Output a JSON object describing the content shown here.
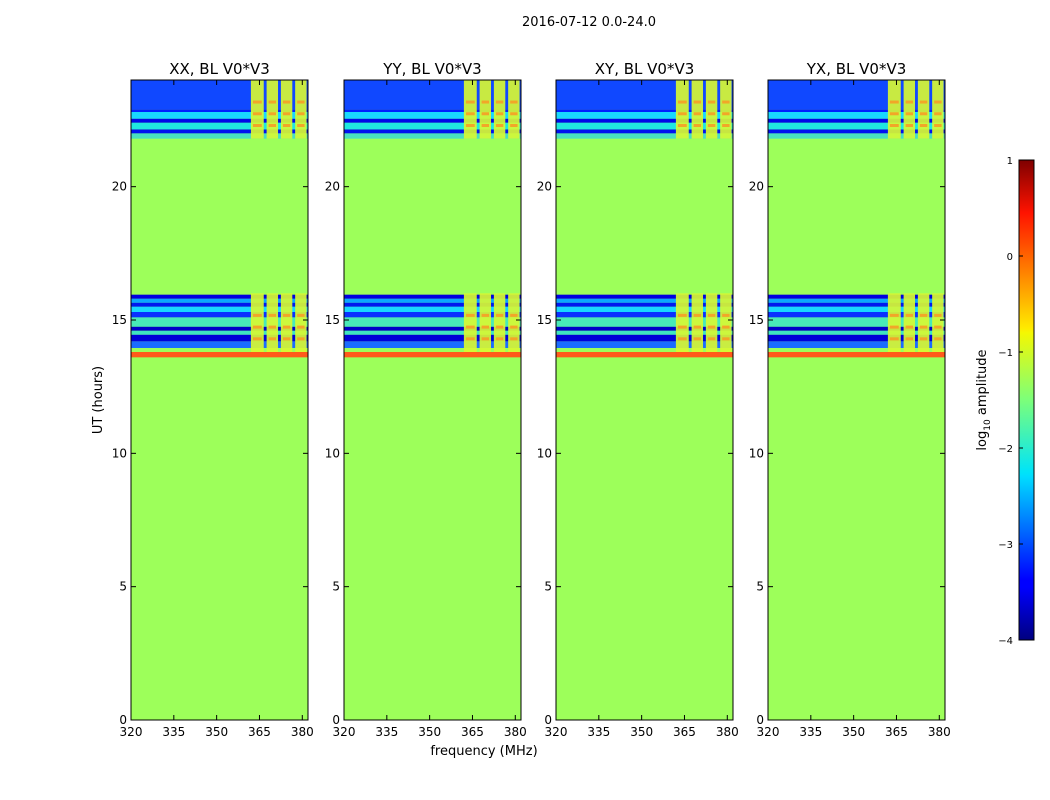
{
  "figure": {
    "suptitle": "2016-07-12 0.0-24.0",
    "xlabel": "frequency (MHz)",
    "ylabel": "UT (hours)"
  },
  "chart_data": {
    "type": "heatmap",
    "x_ticks": [
      320,
      335,
      350,
      365,
      380
    ],
    "xlim": [
      320,
      382
    ],
    "y_ticks": [
      0,
      5,
      10,
      15,
      20
    ],
    "ylim": [
      0,
      24
    ],
    "panels": [
      {
        "title": "XX, BL V0*V3"
      },
      {
        "title": "YY, BL V0*V3"
      },
      {
        "title": "XY, BL V0*V3"
      },
      {
        "title": "YX, BL V0*V3"
      }
    ],
    "fill_value": -1.3,
    "fill_color": "#9dff5a",
    "row_bands": [
      {
        "ut_range": [
          13.6,
          13.8
        ],
        "value": 0.15,
        "color": "#ff5a1a"
      },
      {
        "ut_range": [
          13.8,
          13.95
        ],
        "value": -1.3,
        "color": "#9dff5a"
      },
      {
        "ut_range": [
          13.95,
          14.2
        ],
        "value": -2.6,
        "color": "#1a6cff"
      },
      {
        "ut_range": [
          14.2,
          14.45
        ],
        "value": -3.7,
        "color": "#0000d8"
      },
      {
        "ut_range": [
          14.45,
          14.6
        ],
        "value": -1.8,
        "color": "#3ee6c0"
      },
      {
        "ut_range": [
          14.6,
          14.75
        ],
        "value": -3.8,
        "color": "#0000c8"
      },
      {
        "ut_range": [
          14.75,
          15.1
        ],
        "value": -1.9,
        "color": "#48eab8"
      },
      {
        "ut_range": [
          15.1,
          15.3
        ],
        "value": -3.3,
        "color": "#0a30ff"
      },
      {
        "ut_range": [
          15.3,
          15.5
        ],
        "value": -2.2,
        "color": "#18d8ff"
      },
      {
        "ut_range": [
          15.5,
          15.65
        ],
        "value": -3.5,
        "color": "#0018f0"
      },
      {
        "ut_range": [
          15.65,
          15.8
        ],
        "value": -2.4,
        "color": "#0aa8ff"
      },
      {
        "ut_range": [
          15.8,
          15.95
        ],
        "value": -3.7,
        "color": "#0000e0"
      },
      {
        "ut_range": [
          21.8,
          22.0
        ],
        "value": -1.9,
        "color": "#48e0c0"
      },
      {
        "ut_range": [
          22.0,
          22.15
        ],
        "value": -3.5,
        "color": "#0010f0"
      },
      {
        "ut_range": [
          22.15,
          22.4
        ],
        "value": -2.0,
        "color": "#20e8e0"
      },
      {
        "ut_range": [
          22.4,
          22.55
        ],
        "value": -3.6,
        "color": "#0008e8"
      },
      {
        "ut_range": [
          22.55,
          22.8
        ],
        "value": -2.1,
        "color": "#18d8ff"
      },
      {
        "ut_range": [
          22.8,
          22.9
        ],
        "value": -3.4,
        "color": "#0020ff"
      },
      {
        "ut_range": [
          22.9,
          24.0
        ],
        "value": -3.1,
        "color": "#1048ff"
      }
    ],
    "rfi_channels": {
      "freq_ranges": [
        [
          362,
          366.5
        ],
        [
          367.5,
          371.5
        ],
        [
          372.5,
          376.5
        ],
        [
          377.5,
          381.5
        ]
      ],
      "ut_ranges": [
        [
          13.8,
          16.0
        ],
        [
          21.8,
          24.0
        ]
      ],
      "value": -0.8,
      "color": "#d8f832",
      "hot_color": "#f2a628"
    },
    "colorbar": {
      "label": "log10 amplitude",
      "range": [
        -4,
        1
      ],
      "ticks": [
        "1",
        "0",
        "−1",
        "−2",
        "−3",
        "−4"
      ]
    }
  }
}
